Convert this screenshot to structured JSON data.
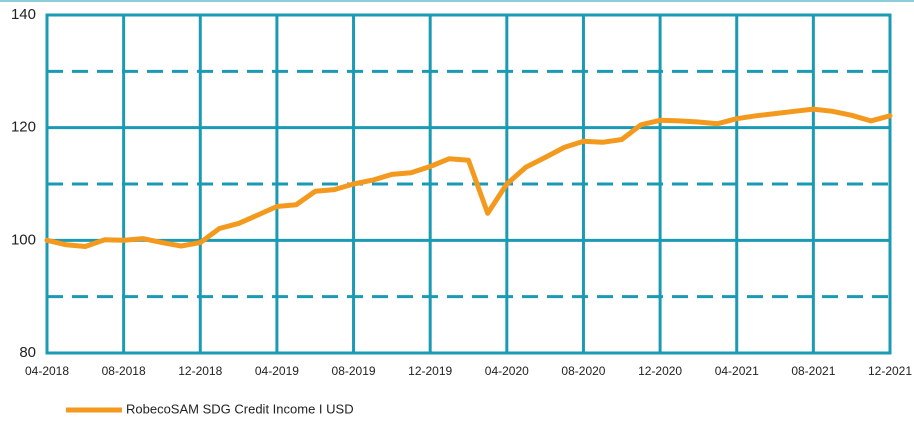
{
  "chart_data": {
    "type": "line",
    "categories": [
      "04-2018",
      null,
      null,
      null,
      "08-2018",
      null,
      null,
      null,
      "12-2018",
      null,
      null,
      null,
      "04-2019",
      null,
      null,
      null,
      "08-2019",
      null,
      null,
      null,
      "12-2019",
      null,
      null,
      null,
      "04-2020",
      null,
      null,
      null,
      "08-2020",
      null,
      null,
      null,
      "12-2020",
      null,
      null,
      null,
      "04-2021",
      null,
      null,
      null,
      "08-2021",
      null,
      null,
      null,
      "12-2021"
    ],
    "series": [
      {
        "name": "RobecoSAM SDG Credit Income I USD",
        "color": "#f39a1e",
        "values": [
          100,
          99.2,
          98.9,
          100.1,
          100,
          100.3,
          99.6,
          99,
          99.6,
          102.1,
          103,
          104.5,
          106,
          106.3,
          108.7,
          109,
          110,
          110.7,
          111.7,
          112,
          113.1,
          114.5,
          114.2,
          104.8,
          110,
          113,
          114.7,
          116.5,
          117.6,
          117.4,
          117.9,
          120.5,
          121.3,
          121.2,
          121,
          120.7,
          121.6,
          122.1,
          122.5,
          122.9,
          123.3,
          122.9,
          122.2,
          121.2,
          122.1
        ]
      }
    ],
    "ylim": [
      80,
      140
    ],
    "yticks": [
      80,
      100,
      120,
      140
    ],
    "minor_yticks": [
      90,
      110,
      130
    ],
    "grid": true,
    "grid_color": "#1b9ab3"
  }
}
